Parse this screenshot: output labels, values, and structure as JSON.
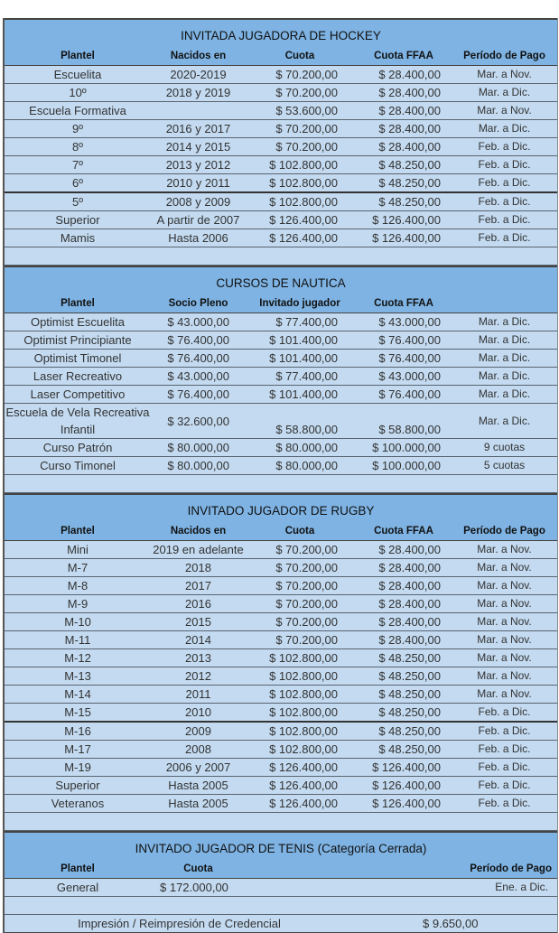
{
  "colors": {
    "header_band": "#7eb3e3",
    "row_fill": "#c3daf0",
    "border": "#444444"
  },
  "hockey": {
    "title": "INVITADA JUGADORA DE HOCKEY",
    "headers": [
      "Plantel",
      "Nacidos en",
      "Cuota",
      "Cuota FFAA",
      "Período de Pago"
    ],
    "rows": [
      [
        "Escuelita",
        "2020-2019",
        "$ 70.200,00",
        "$ 28.400,00",
        "Mar. a Nov."
      ],
      [
        "10º",
        "2018 y 2019",
        "$ 70.200,00",
        "$ 28.400,00",
        "Mar. a Dic."
      ],
      [
        "Escuela Formativa",
        "",
        "$ 53.600,00",
        "$ 28.400,00",
        "Mar. a Nov."
      ],
      [
        "9º",
        "2016 y 2017",
        "$ 70.200,00",
        "$ 28.400,00",
        "Mar. a Dic."
      ],
      [
        "8º",
        "2014 y 2015",
        "$ 70.200,00",
        "$ 28.400,00",
        "Feb. a Dic."
      ],
      [
        "7º",
        "2013 y 2012",
        "$ 102.800,00",
        "$ 48.250,00",
        "Feb. a Dic."
      ],
      [
        "6º",
        "2010 y 2011",
        "$ 102.800,00",
        "$ 48.250,00",
        "Feb. a Dic."
      ],
      [
        "5º",
        "2008 y 2009",
        "$ 102.800,00",
        "$ 48.250,00",
        "Feb. a Dic."
      ],
      [
        "Superior",
        "A partir de 2007",
        "$ 126.400,00",
        "$ 126.400,00",
        "Feb. a Dic."
      ],
      [
        "Mamis",
        "Hasta 2006",
        "$ 126.400,00",
        "$ 126.400,00",
        "Feb. a Dic."
      ]
    ]
  },
  "nautica": {
    "title": "CURSOS DE NAUTICA",
    "headers": [
      "Plantel",
      "Socio Pleno",
      "Invitado jugador",
      "Cuota FFAA",
      ""
    ],
    "rows": [
      [
        "Optimist Escuelita",
        "$ 43.000,00",
        "$ 77.400,00",
        "$ 43.000,00",
        "Mar. a Dic."
      ],
      [
        "Optimist Principiante",
        "$ 76.400,00",
        "$ 101.400,00",
        "$ 76.400,00",
        "Mar. a Dic."
      ],
      [
        "Optimist Timonel",
        "$ 76.400,00",
        "$ 101.400,00",
        "$ 76.400,00",
        "Mar. a Dic."
      ],
      [
        "Laser Recreativo",
        "$ 43.000,00",
        "$ 77.400,00",
        "$ 43.000,00",
        "Mar. a Dic."
      ],
      [
        "Laser Competitivo",
        "$ 76.400,00",
        "$ 101.400,00",
        "$ 76.400,00",
        "Mar. a Dic."
      ],
      [
        "Escuela de Vela Recreativa Infantil",
        "$ 32.600,00",
        "$ 58.800,00",
        "$ 58.800,00",
        "Mar. a Dic."
      ],
      [
        "Curso Patrón",
        "$ 80.000,00",
        "$ 80.000,00",
        "$ 100.000,00",
        "9 cuotas"
      ],
      [
        "Curso Timonel",
        "$ 80.000,00",
        "$ 80.000,00",
        "$ 100.000,00",
        "5 cuotas"
      ]
    ]
  },
  "rugby": {
    "title": "INVITADO JUGADOR DE RUGBY",
    "headers": [
      "Plantel",
      "Nacidos en",
      "Cuota",
      "Cuota FFAA",
      "Período de Pago"
    ],
    "rows": [
      [
        "Mini",
        "2019 en adelante",
        "$ 70.200,00",
        "$ 28.400,00",
        "Mar. a Nov."
      ],
      [
        "M-7",
        "2018",
        "$ 70.200,00",
        "$ 28.400,00",
        "Mar. a Nov."
      ],
      [
        "M-8",
        "2017",
        "$ 70.200,00",
        "$ 28.400,00",
        "Mar. a Nov."
      ],
      [
        "M-9",
        "2016",
        "$ 70.200,00",
        "$ 28.400,00",
        "Mar. a Nov."
      ],
      [
        "M-10",
        "2015",
        "$ 70.200,00",
        "$ 28.400,00",
        "Mar. a Nov."
      ],
      [
        "M-11",
        "2014",
        "$ 70.200,00",
        "$ 28.400,00",
        "Mar. a Nov."
      ],
      [
        "M-12",
        "2013",
        "$ 102.800,00",
        "$ 48.250,00",
        "Mar. a Nov."
      ],
      [
        "M-13",
        "2012",
        "$ 102.800,00",
        "$ 48.250,00",
        "Mar. a Nov."
      ],
      [
        "M-14",
        "2011",
        "$ 102.800,00",
        "$ 48.250,00",
        "Mar. a Nov."
      ],
      [
        "M-15",
        "2010",
        "$ 102.800,00",
        "$ 48.250,00",
        "Feb. a Dic."
      ],
      [
        "M-16",
        "2009",
        "$ 102.800,00",
        "$ 48.250,00",
        "Feb. a Dic."
      ],
      [
        "M-17",
        "2008",
        "$ 102.800,00",
        "$ 48.250,00",
        "Feb. a Dic."
      ],
      [
        "M-19",
        "2006 y 2007",
        "$ 126.400,00",
        "$ 126.400,00",
        "Feb. a Dic."
      ],
      [
        "Superior",
        "Hasta 2005",
        "$ 126.400,00",
        "$ 126.400,00",
        "Feb. a Dic."
      ],
      [
        "Veteranos",
        "Hasta 2005",
        "$ 126.400,00",
        "$ 126.400,00",
        "Feb. a Dic."
      ]
    ]
  },
  "tenis": {
    "title": "INVITADO JUGADOR DE TENIS (Categoría Cerrada)",
    "headers": [
      "Plantel",
      "Cuota",
      "",
      "",
      "Período de Pago"
    ],
    "rows": [
      [
        "General",
        "$ 172.000,00",
        "",
        "",
        "Ene. a Dic."
      ]
    ]
  },
  "credencial": {
    "label": "Impresión / Reimpresión de Credencial",
    "price": "$ 9.650,00"
  }
}
